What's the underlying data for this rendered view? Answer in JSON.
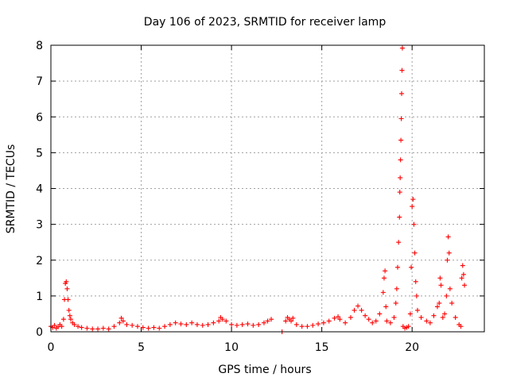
{
  "chart_data": {
    "type": "scatter",
    "title": "Day 106 of 2023, SRMTID for receiver lamp",
    "xlabel": "GPS time / hours",
    "ylabel": "SRMTID / TECUs",
    "xlim": [
      0,
      24
    ],
    "ylim": [
      0,
      8
    ],
    "x_ticks": [
      0,
      5,
      10,
      15,
      20
    ],
    "y_ticks": [
      0,
      1,
      2,
      3,
      4,
      5,
      6,
      7,
      8
    ],
    "grid": true,
    "marker": "+",
    "series": [
      {
        "name": "SRMTID",
        "color": "#ff0000",
        "points": [
          [
            0.0,
            0.15
          ],
          [
            0.1,
            0.12
          ],
          [
            0.2,
            0.18
          ],
          [
            0.3,
            0.1
          ],
          [
            0.4,
            0.14
          ],
          [
            0.5,
            0.2
          ],
          [
            0.6,
            0.15
          ],
          [
            0.7,
            0.35
          ],
          [
            0.75,
            0.9
          ],
          [
            0.8,
            1.35
          ],
          [
            0.85,
            1.4
          ],
          [
            0.9,
            1.2
          ],
          [
            0.95,
            0.9
          ],
          [
            1.0,
            0.6
          ],
          [
            1.05,
            0.45
          ],
          [
            1.1,
            0.35
          ],
          [
            1.2,
            0.25
          ],
          [
            1.3,
            0.2
          ],
          [
            1.5,
            0.15
          ],
          [
            1.7,
            0.12
          ],
          [
            2.0,
            0.1
          ],
          [
            2.3,
            0.08
          ],
          [
            2.6,
            0.08
          ],
          [
            2.9,
            0.1
          ],
          [
            3.2,
            0.08
          ],
          [
            3.5,
            0.15
          ],
          [
            3.8,
            0.25
          ],
          [
            3.9,
            0.38
          ],
          [
            4.0,
            0.3
          ],
          [
            4.2,
            0.2
          ],
          [
            4.5,
            0.18
          ],
          [
            4.8,
            0.15
          ],
          [
            5.1,
            0.12
          ],
          [
            5.4,
            0.1
          ],
          [
            5.7,
            0.12
          ],
          [
            6.0,
            0.1
          ],
          [
            6.3,
            0.15
          ],
          [
            6.6,
            0.2
          ],
          [
            6.9,
            0.25
          ],
          [
            7.2,
            0.22
          ],
          [
            7.5,
            0.2
          ],
          [
            7.8,
            0.25
          ],
          [
            8.1,
            0.2
          ],
          [
            8.4,
            0.18
          ],
          [
            8.7,
            0.2
          ],
          [
            9.0,
            0.25
          ],
          [
            9.3,
            0.3
          ],
          [
            9.4,
            0.4
          ],
          [
            9.5,
            0.35
          ],
          [
            9.7,
            0.3
          ],
          [
            10.0,
            0.2
          ],
          [
            10.3,
            0.18
          ],
          [
            10.6,
            0.2
          ],
          [
            10.9,
            0.22
          ],
          [
            11.2,
            0.18
          ],
          [
            11.5,
            0.2
          ],
          [
            11.8,
            0.25
          ],
          [
            12.0,
            0.3
          ],
          [
            12.2,
            0.35
          ],
          [
            12.8,
            0.0
          ],
          [
            13.0,
            0.3
          ],
          [
            13.1,
            0.4
          ],
          [
            13.2,
            0.35
          ],
          [
            13.3,
            0.3
          ],
          [
            13.4,
            0.38
          ],
          [
            13.6,
            0.2
          ],
          [
            13.9,
            0.15
          ],
          [
            14.2,
            0.15
          ],
          [
            14.5,
            0.18
          ],
          [
            14.8,
            0.22
          ],
          [
            15.1,
            0.25
          ],
          [
            15.4,
            0.3
          ],
          [
            15.7,
            0.38
          ],
          [
            15.9,
            0.42
          ],
          [
            16.0,
            0.35
          ],
          [
            16.3,
            0.25
          ],
          [
            16.6,
            0.4
          ],
          [
            16.8,
            0.6
          ],
          [
            17.0,
            0.72
          ],
          [
            17.2,
            0.6
          ],
          [
            17.4,
            0.45
          ],
          [
            17.6,
            0.35
          ],
          [
            17.8,
            0.25
          ],
          [
            18.0,
            0.3
          ],
          [
            18.2,
            0.5
          ],
          [
            18.4,
            1.1
          ],
          [
            18.45,
            1.5
          ],
          [
            18.5,
            1.7
          ],
          [
            18.55,
            0.7
          ],
          [
            18.6,
            0.3
          ],
          [
            18.8,
            0.25
          ],
          [
            19.0,
            0.4
          ],
          [
            19.1,
            0.8
          ],
          [
            19.15,
            1.2
          ],
          [
            19.2,
            1.8
          ],
          [
            19.25,
            2.5
          ],
          [
            19.3,
            3.2
          ],
          [
            19.32,
            3.9
          ],
          [
            19.34,
            4.3
          ],
          [
            19.36,
            4.8
          ],
          [
            19.38,
            5.35
          ],
          [
            19.4,
            5.95
          ],
          [
            19.42,
            6.65
          ],
          [
            19.44,
            7.3
          ],
          [
            19.46,
            7.92
          ],
          [
            19.5,
            0.15
          ],
          [
            19.6,
            0.1
          ],
          [
            19.7,
            0.12
          ],
          [
            19.8,
            0.15
          ],
          [
            19.9,
            0.5
          ],
          [
            19.95,
            1.8
          ],
          [
            20.0,
            3.5
          ],
          [
            20.05,
            3.7
          ],
          [
            20.1,
            3.0
          ],
          [
            20.15,
            2.2
          ],
          [
            20.2,
            1.4
          ],
          [
            20.25,
            1.0
          ],
          [
            20.3,
            0.6
          ],
          [
            20.5,
            0.4
          ],
          [
            20.8,
            0.3
          ],
          [
            21.0,
            0.25
          ],
          [
            21.2,
            0.45
          ],
          [
            21.4,
            0.7
          ],
          [
            21.5,
            0.8
          ],
          [
            21.55,
            1.5
          ],
          [
            21.6,
            1.3
          ],
          [
            21.7,
            0.4
          ],
          [
            21.8,
            0.5
          ],
          [
            21.9,
            1.0
          ],
          [
            21.95,
            2.0
          ],
          [
            22.0,
            2.65
          ],
          [
            22.05,
            2.2
          ],
          [
            22.1,
            1.2
          ],
          [
            22.2,
            0.8
          ],
          [
            22.4,
            0.4
          ],
          [
            22.6,
            0.2
          ],
          [
            22.7,
            0.15
          ],
          [
            22.75,
            1.5
          ],
          [
            22.8,
            1.85
          ],
          [
            22.85,
            1.6
          ],
          [
            22.9,
            1.3
          ]
        ]
      }
    ]
  }
}
